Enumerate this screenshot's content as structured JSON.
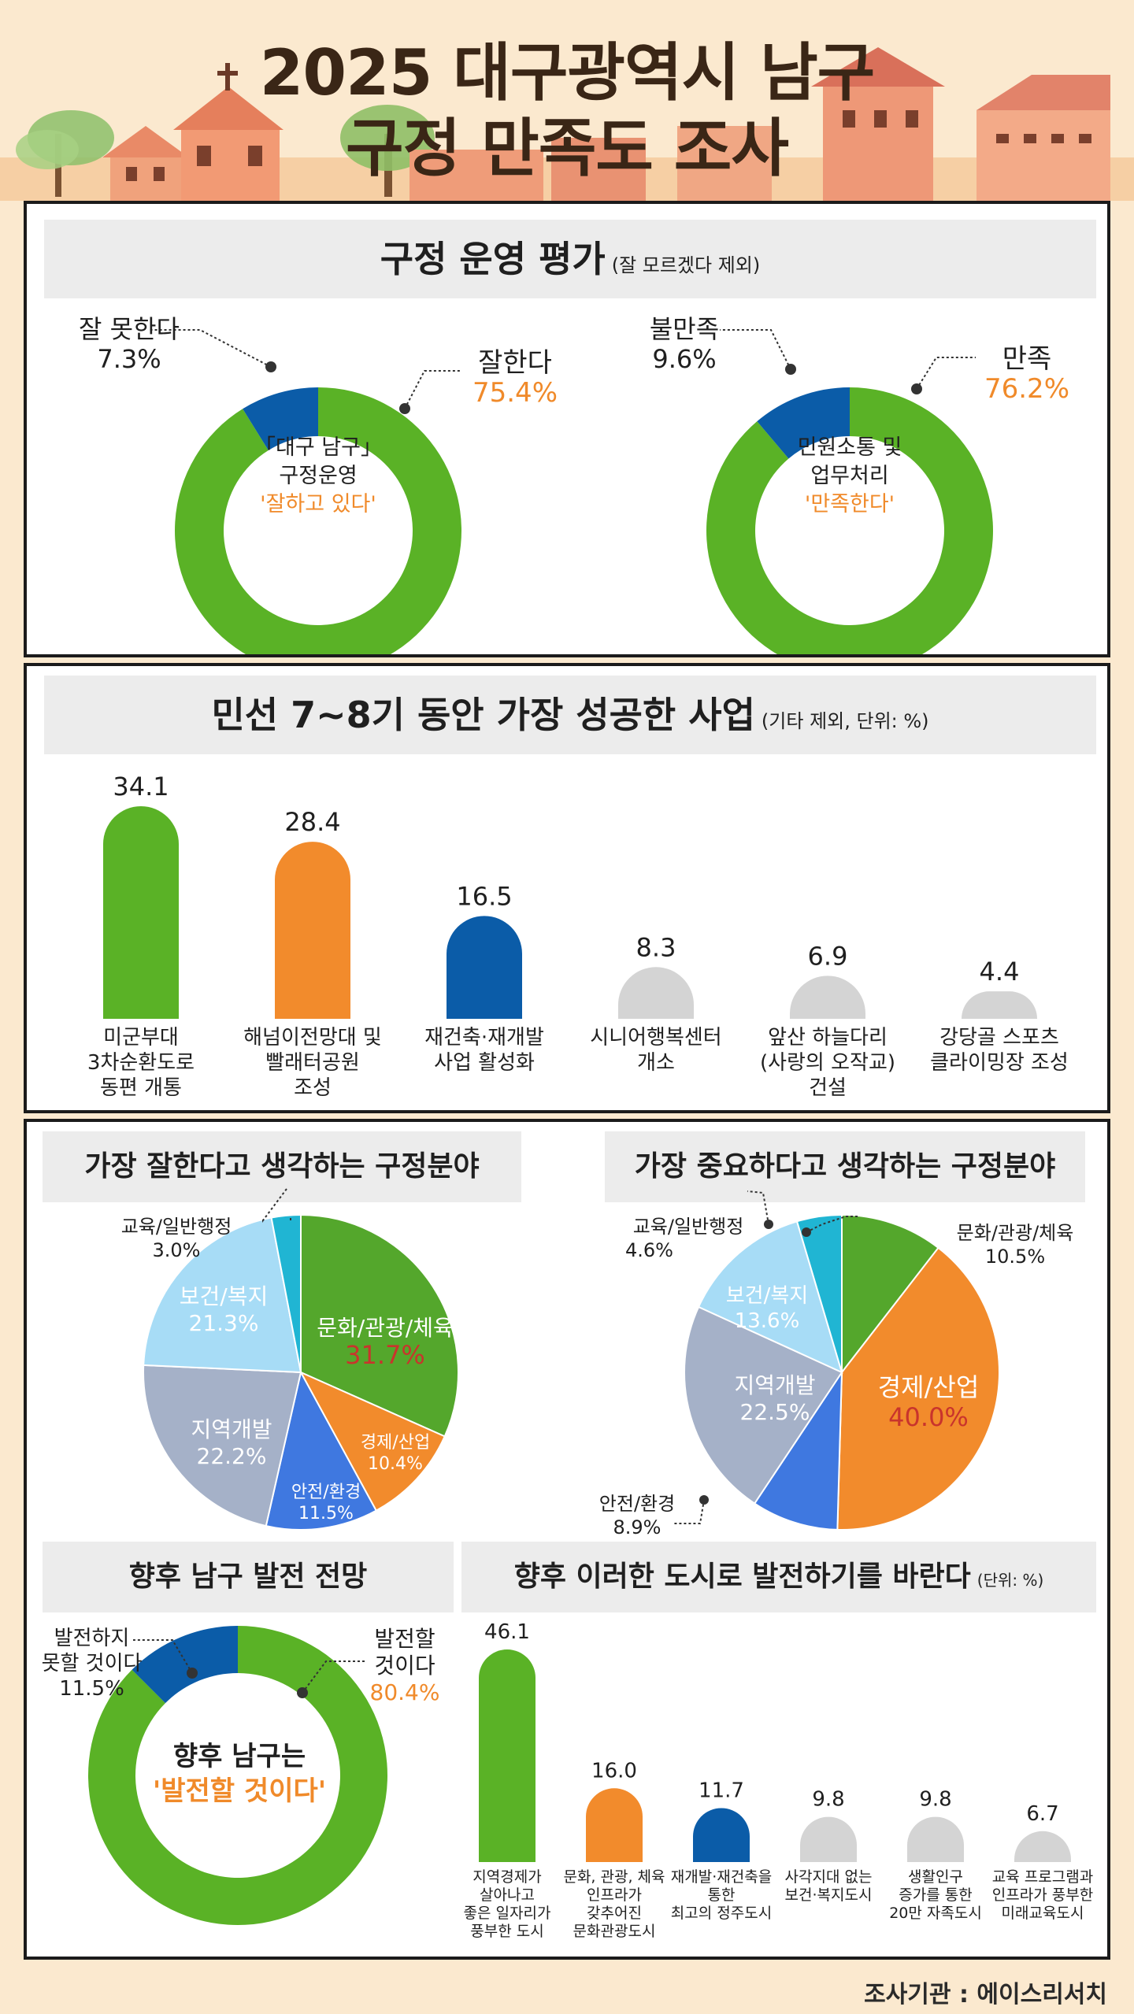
{
  "header": {
    "title_line1": "2025 대구광역시 남구",
    "title_line2": "구정 만족도 조사"
  },
  "colors": {
    "green": "#5ab226",
    "orange": "#f28b2c",
    "blue": "#0b5ca8",
    "gray": "#d4d4d4",
    "highlight": "#f08a2a",
    "red_text": "#c9342c"
  },
  "section1": {
    "title": "구정 운영 평가",
    "subtitle": "(잘 모르겠다 제외)",
    "donut_left": {
      "center_line1": "「대구 남구」",
      "center_line2": "구정운영",
      "center_line3": "'잘하고 있다'",
      "pos_label": "잘한다",
      "pos_value": "75.4%",
      "neg_label": "잘 못한다",
      "neg_value": "7.3%"
    },
    "donut_right": {
      "center_line1": "민원소통 및",
      "center_line2": "업무처리",
      "center_line3": "'만족한다'",
      "pos_label": "만족",
      "pos_value": "76.2%",
      "neg_label": "불만족",
      "neg_value": "9.6%"
    }
  },
  "section2": {
    "title": "민선 7~8기 동안 가장 성공한 사업",
    "subtitle": "(기타 제외, 단위: %)"
  },
  "section3": {
    "pie_left_title": "가장 잘한다고 생각하는 구정분야",
    "pie_right_title": "가장 중요하다고 생각하는 구정분야",
    "outlook_title": "향후 남구 발전 전망",
    "future_title": "향후 이러한 도시로 발전하기를 바란다",
    "future_subtitle": "(단위: %)",
    "outlook": {
      "center_line1": "향후 남구는",
      "center_line2": "'발전할 것이다'",
      "pos_label_1": "발전할",
      "pos_label_2": "것이다",
      "pos_value": "80.4%",
      "neg_label_1": "발전하지",
      "neg_label_2": "못할 것이다",
      "neg_value": "11.5%"
    }
  },
  "footer": "조사기관 : 에이스리서치",
  "chart_data": [
    {
      "type": "pie",
      "title": "구정 운영 평가",
      "categories": [
        "잘한다",
        "잘 못한다"
      ],
      "values": [
        75.4,
        7.3
      ]
    },
    {
      "type": "pie",
      "title": "민원소통 및 업무처리",
      "categories": [
        "만족",
        "불만족"
      ],
      "values": [
        76.2,
        9.6
      ]
    },
    {
      "type": "bar",
      "title": "민선 7~8기 동안 가장 성공한 사업",
      "categories": [
        "미군부대\n3차순환도로\n동편 개통",
        "해넘이전망대 및\n빨래터공원\n조성",
        "재건축·재개발\n사업 활성화",
        "시니어행복센터\n개소",
        "앞산 하늘다리\n(사랑의 오작교)\n건설",
        "강당골 스포츠\n클라이밍장 조성"
      ],
      "values": [
        34.1,
        28.4,
        16.5,
        8.3,
        6.9,
        4.4
      ],
      "value_labels": [
        "34.1",
        "28.4",
        "16.5",
        "8.3",
        "6.9",
        "4.4"
      ],
      "bar_colors": [
        "#5ab226",
        "#f28b2c",
        "#0b5ca8",
        "#d4d4d4",
        "#d4d4d4",
        "#d4d4d4"
      ]
    },
    {
      "type": "pie",
      "title": "가장 잘한다고 생각하는 구정분야",
      "categories": [
        "문화/관광/체육",
        "경제/산업",
        "안전/환경",
        "지역개발",
        "보건/복지",
        "교육/일반행정"
      ],
      "values": [
        31.7,
        10.4,
        11.5,
        22.2,
        21.3,
        3.0
      ],
      "value_labels": [
        "31.7%",
        "10.4%",
        "11.5%",
        "22.2%",
        "21.3%",
        "3.0%"
      ],
      "slice_colors": [
        "#54a72c",
        "#f28b2c",
        "#3f78e0",
        "#a5b1c8",
        "#a7dcf6",
        "#20b5d3"
      ]
    },
    {
      "type": "pie",
      "title": "가장 중요하다고 생각하는 구정분야",
      "categories": [
        "문화/관광/체육",
        "경제/산업",
        "안전/환경",
        "지역개발",
        "보건/복지",
        "교육/일반행정"
      ],
      "values": [
        10.5,
        40.0,
        8.9,
        22.5,
        13.6,
        4.6
      ],
      "value_labels": [
        "10.5%",
        "40.0%",
        "8.9%",
        "22.5%",
        "13.6%",
        "4.6%"
      ],
      "slice_colors": [
        "#54a72c",
        "#f28b2c",
        "#3f78e0",
        "#a5b1c8",
        "#a7dcf6",
        "#20b5d3"
      ]
    },
    {
      "type": "pie",
      "title": "향후 남구 발전 전망",
      "categories": [
        "발전할 것이다",
        "발전하지 못할 것이다"
      ],
      "values": [
        80.4,
        11.5
      ]
    },
    {
      "type": "bar",
      "title": "향후 이러한 도시로 발전하기를 바란다",
      "categories": [
        "지역경제가\n살아나고\n좋은 일자리가\n풍부한 도시",
        "문화, 관광, 체육\n인프라가\n갖추어진\n문화관광도시",
        "재개발·재건축을\n통한\n최고의 정주도시",
        "사각지대 없는\n보건·복지도시",
        "생활인구\n증가를 통한\n20만 자족도시",
        "교육 프로그램과\n인프라가 풍부한\n미래교육도시"
      ],
      "values": [
        46.1,
        16.0,
        11.7,
        9.8,
        9.8,
        6.7
      ],
      "value_labels": [
        "46.1",
        "16.0",
        "11.7",
        "9.8",
        "9.8",
        "6.7"
      ],
      "bar_colors": [
        "#5ab226",
        "#f28b2c",
        "#0b5ca8",
        "#d4d4d4",
        "#d4d4d4",
        "#d4d4d4"
      ]
    }
  ]
}
